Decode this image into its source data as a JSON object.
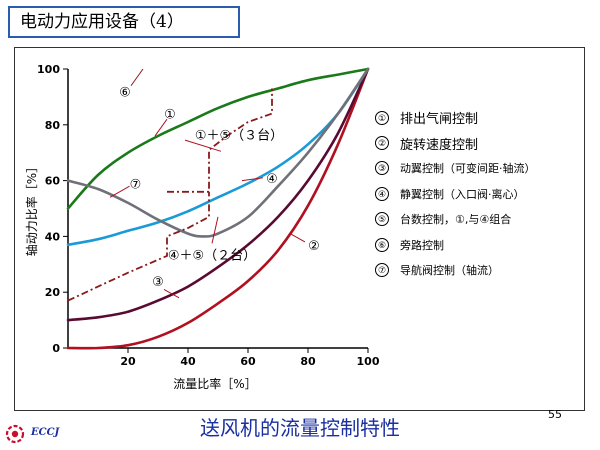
{
  "slide": {
    "title": "电动力应用设备（4）",
    "caption": "送风机的流量控制特性",
    "page_number": "55",
    "logo_text": "ECCJ"
  },
  "chart_data": {
    "type": "line",
    "xlabel": "流量比率［%］",
    "ylabel": "轴动力比率［%］",
    "xlim": [
      0,
      100
    ],
    "ylim": [
      0,
      100
    ],
    "xticks": [
      "20",
      "40",
      "60",
      "80",
      "100"
    ],
    "yticks": [
      "0",
      "20",
      "40",
      "60",
      "80",
      "100"
    ],
    "grid": false,
    "series": [
      {
        "id": "1",
        "name": "排出气闸控制",
        "color": "#1a7a1a",
        "style": "solid",
        "x": [
          0,
          10,
          20,
          30,
          40,
          50,
          60,
          70,
          80,
          90,
          100
        ],
        "y": [
          50,
          62,
          70,
          76,
          81,
          86,
          90,
          93,
          96,
          98,
          100
        ]
      },
      {
        "id": "2",
        "name": "旋转速度控制",
        "color": "#b01020",
        "style": "solid",
        "x": [
          0,
          10,
          20,
          30,
          40,
          50,
          60,
          70,
          80,
          90,
          100
        ],
        "y": [
          0,
          0,
          1,
          4,
          9,
          16,
          24,
          35,
          51,
          73,
          100
        ]
      },
      {
        "id": "3",
        "name": "动翼控制（可变间距·轴流）",
        "color": "#5a0a30",
        "style": "solid",
        "x": [
          0,
          10,
          20,
          30,
          40,
          50,
          60,
          70,
          80,
          90,
          100
        ],
        "y": [
          10,
          11,
          13,
          17,
          22,
          29,
          37,
          47,
          60,
          77,
          100
        ]
      },
      {
        "id": "4",
        "name": "静翼控制（入口阀·离心）",
        "color": "#1a9ad6",
        "style": "solid",
        "x": [
          0,
          10,
          20,
          30,
          40,
          50,
          60,
          70,
          80,
          90,
          100
        ],
        "y": [
          37,
          39,
          42,
          45,
          49,
          54,
          59,
          65,
          73,
          84,
          100
        ]
      },
      {
        "id": "7",
        "name": "导航阀控制（轴流）",
        "color": "#707078",
        "style": "solid",
        "x": [
          0,
          10,
          20,
          30,
          40,
          45,
          50,
          60,
          70,
          80,
          90,
          100
        ],
        "y": [
          60,
          57,
          52,
          46,
          41,
          40,
          41,
          47,
          58,
          70,
          84,
          100
        ]
      },
      {
        "id": "5",
        "name": "台数控制，①,与④组合",
        "color": "#8b1a1a",
        "style": "dashdot",
        "segments": [
          {
            "label": "④＋⑤（２台）",
            "x": [
              0,
              10,
              20,
              33,
              33,
              40,
              47,
              47
            ],
            "y": [
              17,
              22,
              27,
              33,
              40,
              43,
              47,
              56
            ]
          },
          {
            "label": "①＋⑤（３台）",
            "x": [
              33,
              47,
              47,
              53,
              60,
              68,
              68
            ],
            "y": [
              56,
              56,
              71,
              76,
              81,
              84,
              93
            ]
          }
        ]
      }
    ],
    "annotations": [
      {
        "text": "⑥",
        "x": 19,
        "y": 92,
        "leader": [
          [
            21,
            94
          ],
          [
            25,
            100
          ]
        ]
      },
      {
        "text": "①",
        "x": 34,
        "y": 84,
        "leader": [
          [
            33,
            82
          ],
          [
            29,
            76
          ]
        ]
      },
      {
        "text": "①＋⑤（３台）",
        "x": 57,
        "y": 76.5,
        "leader": [
          [
            39,
            74.5
          ],
          [
            51,
            70.5
          ]
        ]
      },
      {
        "text": "⑦",
        "x": 22.5,
        "y": 59,
        "leader": [
          [
            20.5,
            58
          ],
          [
            14,
            54
          ]
        ]
      },
      {
        "text": "④",
        "x": 68,
        "y": 61,
        "leader": [
          [
            65,
            61
          ],
          [
            58,
            60
          ]
        ]
      },
      {
        "text": "④＋⑤（２台）",
        "x": 48,
        "y": 33.5,
        "leader": [
          [
            48,
            37.5
          ],
          [
            50,
            47
          ]
        ]
      },
      {
        "text": "②",
        "x": 82,
        "y": 37,
        "leader": [
          [
            79,
            38
          ],
          [
            74,
            41
          ]
        ]
      },
      {
        "text": "③",
        "x": 30,
        "y": 24,
        "leader": [
          [
            32,
            21
          ],
          [
            37,
            18
          ]
        ]
      }
    ]
  },
  "legend": [
    {
      "num": "①",
      "label": "排出气闸控制"
    },
    {
      "num": "②",
      "label": "旋转速度控制"
    },
    {
      "num": "③",
      "label": "动翼控制（可变间距·轴流）"
    },
    {
      "num": "④",
      "label": "静翼控制（入口阀·离心）"
    },
    {
      "num": "⑤",
      "label": "台数控制，①,与④组合"
    },
    {
      "num": "⑥",
      "label": "旁路控制"
    },
    {
      "num": "⑦",
      "label": "导航阀控制（轴流）"
    }
  ]
}
